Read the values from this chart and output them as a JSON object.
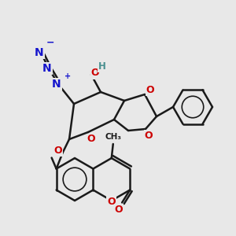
{
  "bg_color": "#e8e8e8",
  "bond_color": "#1a1a1a",
  "bw": 1.8,
  "atom_colors": {
    "O": "#cc0000",
    "N": "#1515cc",
    "H": "#4a9090",
    "C": "#1a1a1a"
  },
  "fs": 10
}
